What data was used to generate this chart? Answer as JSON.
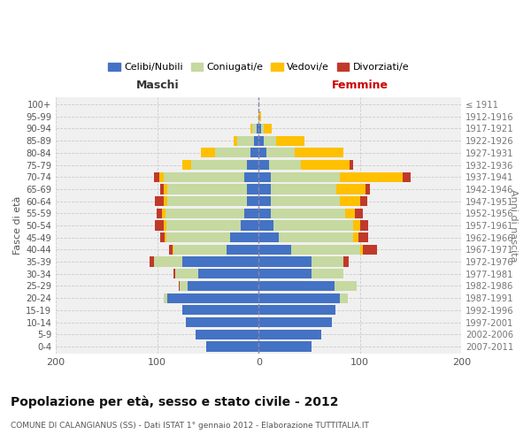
{
  "age_groups": [
    "100+",
    "95-99",
    "90-94",
    "85-89",
    "80-84",
    "75-79",
    "70-74",
    "65-69",
    "60-64",
    "55-59",
    "50-54",
    "45-49",
    "40-44",
    "35-39",
    "30-34",
    "25-29",
    "20-24",
    "15-19",
    "10-14",
    "5-9",
    "0-4"
  ],
  "birth_years": [
    "≤ 1911",
    "1912-1916",
    "1917-1921",
    "1922-1926",
    "1927-1931",
    "1932-1936",
    "1937-1941",
    "1942-1946",
    "1947-1951",
    "1952-1956",
    "1957-1961",
    "1962-1966",
    "1967-1971",
    "1972-1976",
    "1977-1981",
    "1982-1986",
    "1987-1991",
    "1992-1996",
    "1997-2001",
    "2002-2006",
    "2007-2011"
  ],
  "male": {
    "celibi": [
      0,
      0,
      2,
      5,
      8,
      12,
      14,
      12,
      12,
      14,
      18,
      28,
      32,
      75,
      60,
      70,
      90,
      75,
      72,
      62,
      52
    ],
    "coniugati": [
      0,
      0,
      4,
      16,
      35,
      55,
      80,
      78,
      78,
      78,
      73,
      63,
      52,
      28,
      22,
      8,
      4,
      0,
      0,
      0,
      0
    ],
    "vedovi": [
      0,
      0,
      2,
      4,
      14,
      8,
      4,
      4,
      4,
      3,
      3,
      2,
      1,
      0,
      0,
      0,
      0,
      0,
      0,
      0,
      0
    ],
    "divorziati": [
      0,
      0,
      0,
      0,
      0,
      0,
      5,
      3,
      8,
      6,
      8,
      4,
      3,
      5,
      2,
      1,
      0,
      0,
      0,
      0,
      0
    ]
  },
  "female": {
    "nubili": [
      0,
      0,
      2,
      5,
      8,
      10,
      12,
      12,
      12,
      12,
      15,
      20,
      32,
      52,
      52,
      75,
      80,
      76,
      72,
      62,
      52
    ],
    "coniugate": [
      0,
      0,
      3,
      12,
      28,
      32,
      68,
      65,
      68,
      73,
      78,
      73,
      68,
      32,
      32,
      22,
      8,
      0,
      0,
      0,
      0
    ],
    "vedove": [
      0,
      2,
      8,
      28,
      48,
      48,
      62,
      28,
      20,
      10,
      7,
      5,
      3,
      0,
      0,
      0,
      0,
      0,
      0,
      0,
      0
    ],
    "divorziate": [
      0,
      0,
      0,
      0,
      0,
      3,
      8,
      5,
      7,
      8,
      8,
      10,
      14,
      5,
      0,
      0,
      0,
      0,
      0,
      0,
      0
    ]
  },
  "colors": {
    "celibi": "#4472c4",
    "coniugati": "#c5d9a0",
    "vedovi": "#ffc000",
    "divorziati": "#c0392b"
  },
  "title": "Popolazione per età, sesso e stato civile - 2012",
  "subtitle": "COMUNE DI CALANGIANUS (SS) - Dati ISTAT 1° gennaio 2012 - Elaborazione TUTTITALIA.IT",
  "xlabel_left": "Maschi",
  "xlabel_right": "Femmine",
  "ylabel_left": "Fasce di età",
  "ylabel_right": "Anni di nascita",
  "xlim": 200,
  "bg_color": "#ffffff",
  "plot_bg": "#f0f0f0",
  "legend_labels": [
    "Celibi/Nubili",
    "Coniugati/e",
    "Vedovi/e",
    "Divorziati/e"
  ]
}
